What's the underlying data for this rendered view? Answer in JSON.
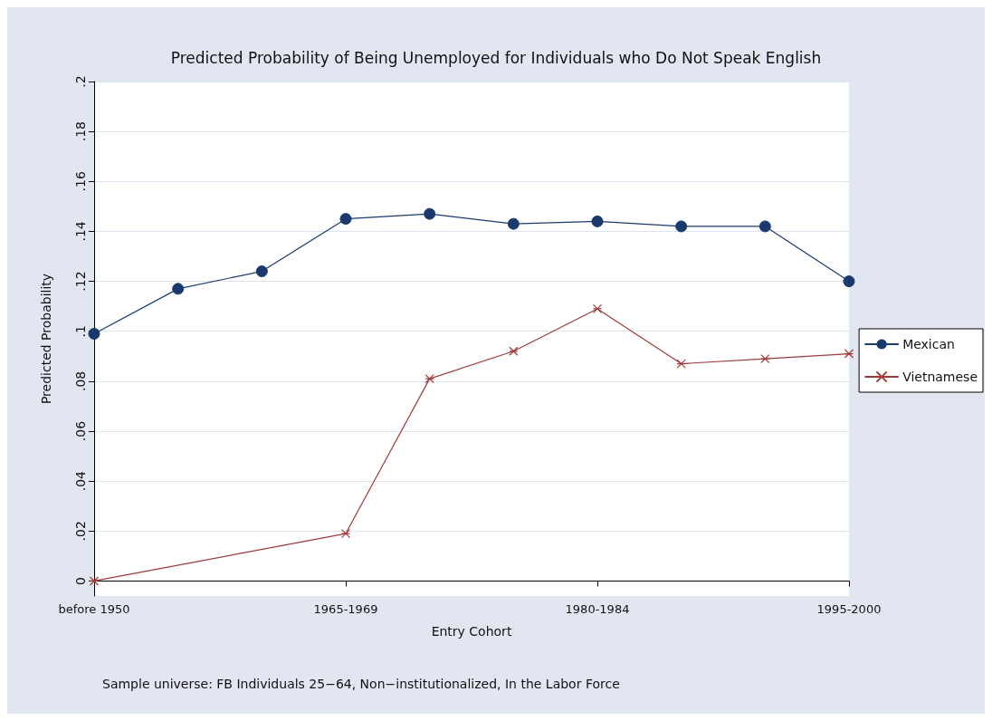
{
  "chart_data": {
    "type": "line",
    "title": "Predicted Probability of Being Unemployed for Individuals who Do Not Speak English",
    "xlabel": "Entry Cohort",
    "ylabel": "Predicted Probability",
    "annotations": [
      "Sample universe: FB Individuals 25−64, Non−institutionalized, In the Labor Force"
    ],
    "categories": [
      "before 1950",
      null,
      null,
      "1965-1969",
      null,
      null,
      "1980-1984",
      null,
      null,
      "1995-2000"
    ],
    "series": [
      {
        "name": "Mexican",
        "color": "#1a3a6e",
        "marker": "circle",
        "values": [
          0.099,
          0.117,
          0.124,
          0.145,
          0.147,
          0.143,
          0.144,
          0.142,
          0.142,
          0.12
        ]
      },
      {
        "name": "Vietnamese",
        "color": "#a03a3a",
        "marker": "cross",
        "values": [
          0.0,
          null,
          null,
          0.019,
          0.081,
          0.092,
          0.109,
          0.087,
          0.089,
          0.091
        ]
      }
    ],
    "ylim": [
      -0.006,
      0.2
    ],
    "yticks": [
      {
        "value": 0,
        "label": "0"
      },
      {
        "value": 0.02,
        "label": ".02"
      },
      {
        "value": 0.04,
        "label": ".04"
      },
      {
        "value": 0.06,
        "label": ".06"
      },
      {
        "value": 0.08,
        "label": ".08"
      },
      {
        "value": 0.1,
        "label": ".1"
      },
      {
        "value": 0.12,
        "label": ".12"
      },
      {
        "value": 0.14,
        "label": ".14"
      },
      {
        "value": 0.16,
        "label": ".16"
      },
      {
        "value": 0.18,
        "label": ".18"
      },
      {
        "value": 0.2,
        "label": ".2"
      }
    ],
    "grid": "y",
    "legend": "right",
    "line_style": "solid"
  }
}
